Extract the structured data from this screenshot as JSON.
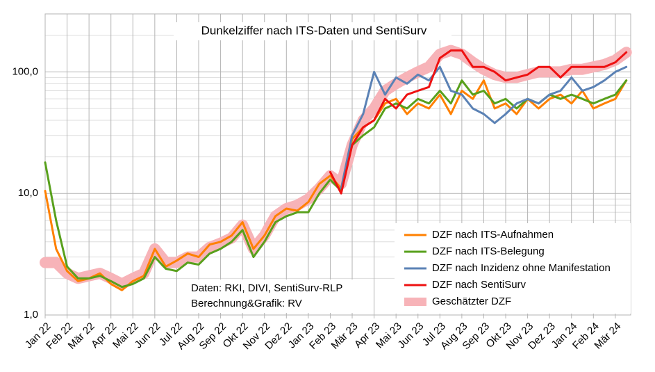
{
  "chart_data": {
    "type": "line",
    "title": "Dunkelziffer nach ITS-Daten und SentiSurv",
    "annotations": [
      "Daten: RKI, DIVI, SentiSurv-RLP",
      "Berechnung&Grafik: RV"
    ],
    "log_scale": true,
    "grid": true,
    "legend": "lower right",
    "xlim": [
      0,
      26.7
    ],
    "xticks": [
      {
        "value": 0,
        "label": "Jan 22"
      },
      {
        "value": 1,
        "label": "Feb 22"
      },
      {
        "value": 2,
        "label": "Mär 22"
      },
      {
        "value": 3,
        "label": "Apr 22"
      },
      {
        "value": 4,
        "label": "Mai 22"
      },
      {
        "value": 5,
        "label": "Jun 22"
      },
      {
        "value": 6,
        "label": "Jul 22"
      },
      {
        "value": 7,
        "label": "Aug 22"
      },
      {
        "value": 8,
        "label": "Sep 22"
      },
      {
        "value": 9,
        "label": "Okt 22"
      },
      {
        "value": 10,
        "label": "Nov 22"
      },
      {
        "value": 11,
        "label": "Dez 22"
      },
      {
        "value": 12,
        "label": "Jan 23"
      },
      {
        "value": 13,
        "label": "Feb 23"
      },
      {
        "value": 14,
        "label": "Mär 23"
      },
      {
        "value": 15,
        "label": "Apr 23"
      },
      {
        "value": 16,
        "label": "Mai 23"
      },
      {
        "value": 17,
        "label": "Jun 23"
      },
      {
        "value": 18,
        "label": "Jul 23"
      },
      {
        "value": 19,
        "label": "Aug 23"
      },
      {
        "value": 20,
        "label": "Sep 23"
      },
      {
        "value": 21,
        "label": "Okt 23"
      },
      {
        "value": 22,
        "label": "Nov 23"
      },
      {
        "value": 23,
        "label": "Dez 23"
      },
      {
        "value": 24,
        "label": "Jan 24"
      },
      {
        "value": 25,
        "label": "Feb 24"
      },
      {
        "value": 26,
        "label": "Mär 24"
      }
    ],
    "ylim": [
      1,
      300
    ],
    "yticks": [
      {
        "value": 1,
        "label": "1,0"
      },
      {
        "value": 10,
        "label": "10,0"
      },
      {
        "value": 100,
        "label": "100,0"
      }
    ],
    "x": [
      0,
      0.5,
      1,
      1.5,
      2,
      2.5,
      3,
      3.5,
      4,
      4.5,
      5,
      5.5,
      6,
      6.5,
      7,
      7.5,
      8,
      8.5,
      9,
      9.5,
      10,
      10.5,
      11,
      11.5,
      12,
      12.5,
      13,
      13.5,
      14,
      14.5,
      15,
      15.5,
      16,
      16.5,
      17,
      17.5,
      18,
      18.5,
      19,
      19.5,
      20,
      20.5,
      21,
      21.5,
      22,
      22.5,
      23,
      23.5,
      24,
      24.5,
      25,
      25.5,
      26,
      26.5
    ],
    "series": [
      {
        "name": "DZF nach ITS-Aufnahmen",
        "color": "#ff8000",
        "width": 3,
        "values": [
          10.5,
          3.5,
          2.3,
          1.9,
          2.0,
          2.2,
          1.8,
          1.6,
          1.9,
          2.1,
          3.5,
          2.5,
          2.8,
          3.2,
          3.0,
          3.8,
          4.0,
          4.5,
          5.8,
          3.5,
          4.5,
          6.5,
          7.5,
          7.2,
          8.5,
          12,
          14,
          11,
          28,
          35,
          40,
          55,
          60,
          45,
          55,
          50,
          65,
          45,
          70,
          60,
          85,
          50,
          55,
          45,
          60,
          50,
          60,
          65,
          55,
          70,
          50,
          55,
          60,
          85
        ]
      },
      {
        "name": "DZF nach ITS-Belegung",
        "color": "#58a01c",
        "width": 3,
        "values": [
          18,
          6,
          2.5,
          2.0,
          2.0,
          2.1,
          1.9,
          1.7,
          1.8,
          2.0,
          3.0,
          2.4,
          2.3,
          2.7,
          2.6,
          3.2,
          3.5,
          4.0,
          5.0,
          3.0,
          4.0,
          5.8,
          6.5,
          7.0,
          7.0,
          10,
          13,
          10.5,
          25,
          30,
          35,
          50,
          55,
          50,
          60,
          55,
          70,
          55,
          85,
          65,
          70,
          55,
          60,
          50,
          60,
          55,
          65,
          60,
          65,
          60,
          55,
          60,
          65,
          85
        ]
      },
      {
        "name": "DZF nach Inzidenz ohne Manifestation",
        "color": "#5b82b5",
        "width": 3,
        "values": [
          null,
          null,
          null,
          null,
          null,
          null,
          null,
          null,
          null,
          null,
          null,
          null,
          null,
          null,
          null,
          null,
          null,
          null,
          null,
          null,
          null,
          null,
          null,
          null,
          null,
          null,
          null,
          11,
          30,
          45,
          100,
          65,
          90,
          80,
          95,
          85,
          110,
          70,
          65,
          50,
          45,
          38,
          45,
          55,
          60,
          55,
          65,
          70,
          90,
          70,
          75,
          85,
          100,
          110
        ]
      },
      {
        "name": "DZF nach SentiSurv",
        "color": "#ee1111",
        "width": 3,
        "values": [
          null,
          null,
          null,
          null,
          null,
          null,
          null,
          null,
          null,
          null,
          null,
          null,
          null,
          null,
          null,
          null,
          null,
          null,
          null,
          null,
          null,
          null,
          null,
          null,
          null,
          null,
          15,
          10,
          25,
          35,
          40,
          60,
          50,
          65,
          70,
          75,
          130,
          150,
          150,
          110,
          110,
          100,
          85,
          90,
          95,
          110,
          110,
          90,
          110,
          110,
          110,
          110,
          120,
          145
        ]
      },
      {
        "name": "Geschätzter DZF",
        "color": "#f7b3b8",
        "width": 16,
        "values": [
          2.7,
          2.7,
          2.2,
          2.0,
          2.1,
          2.2,
          2.0,
          1.8,
          2.0,
          2.2,
          3.5,
          2.7,
          2.7,
          3.0,
          3.0,
          3.6,
          3.9,
          4.3,
          5.5,
          3.5,
          4.5,
          6.5,
          7.5,
          8,
          9,
          11,
          14,
          12,
          25,
          40,
          50,
          70,
          80,
          90,
          100,
          110,
          140,
          150,
          140,
          120,
          105,
          95,
          90,
          90,
          95,
          100,
          100,
          100,
          105,
          105,
          110,
          115,
          125,
          145
        ]
      }
    ]
  }
}
